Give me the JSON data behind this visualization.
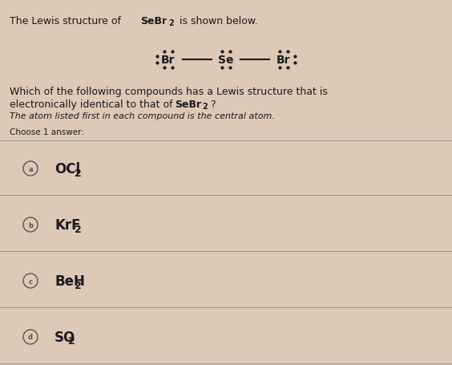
{
  "background_color": "#dcc9b8",
  "text_color": "#1a1a1a",
  "line_color": "#999999",
  "circle_color": "#555555",
  "font_size_main": 9,
  "font_size_lewis": 11,
  "font_size_options": 11,
  "title_normal": "The Lewis structure of ",
  "title_bold": "SeBr",
  "title_sub": "2",
  "title_end": " is shown below.",
  "question_line1": "Which of the following compounds has a Lewis structure that is",
  "question_line2a": "electronically identical to that of ",
  "question_bold": "SeBr",
  "question_sub": "2",
  "question_end": "?",
  "italic_note": "The atom listed first in each compound is the central atom.",
  "choose_text": "Choose 1 answer:",
  "options": [
    {
      "label": "a",
      "text": "OCl",
      "sub": "2"
    },
    {
      "label": "b",
      "text": "KrF",
      "sub": "2"
    },
    {
      "label": "c",
      "text": "BeH",
      "sub": "2"
    },
    {
      "label": "d",
      "text": "SO",
      "sub": "2"
    }
  ]
}
